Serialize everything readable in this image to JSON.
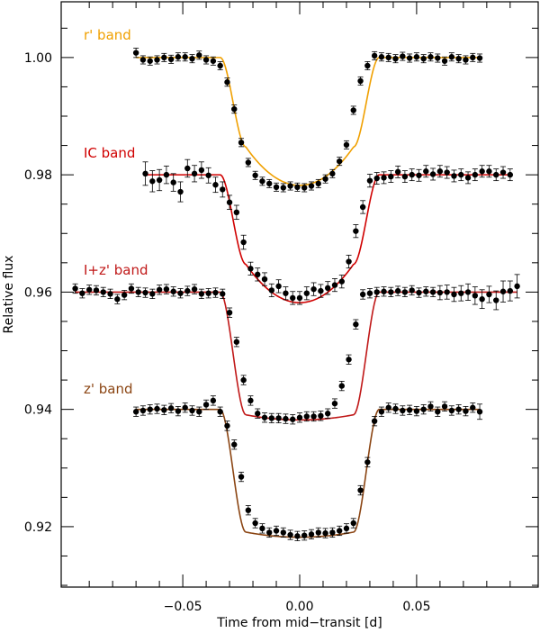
{
  "chart_data": {
    "type": "scatter",
    "xlabel": "Time from mid−transit [d]",
    "ylabel": "Relative flux",
    "xlim": [
      -0.102,
      0.102
    ],
    "ylim": [
      0.9097,
      1.0095
    ],
    "x_ticks": [
      {
        "value": -0.05,
        "label": "−0.05"
      },
      {
        "value": 0.0,
        "label": "0.00"
      },
      {
        "value": 0.05,
        "label": "0.05"
      }
    ],
    "y_ticks": [
      {
        "value": 1.0,
        "label": "1.00"
      },
      {
        "value": 0.98,
        "label": "0.98"
      },
      {
        "value": 0.96,
        "label": "0.96"
      },
      {
        "value": 0.94,
        "label": "0.94"
      },
      {
        "value": 0.92,
        "label": "0.92"
      }
    ],
    "grid": false,
    "legend": "none",
    "transit": {
      "ingress_start": 0.034,
      "ingress_end": 0.023
    },
    "series": [
      {
        "name": "r' band",
        "color": "#F0A000",
        "baseline": 1.0,
        "depth": 0.0218,
        "shape": "curved",
        "x": [
          -0.07,
          -0.067,
          -0.064,
          -0.061,
          -0.058,
          -0.055,
          -0.052,
          -0.049,
          -0.046,
          -0.043,
          -0.04,
          -0.037,
          -0.034,
          -0.031,
          -0.028,
          -0.025,
          -0.022,
          -0.019,
          -0.016,
          -0.013,
          -0.01,
          -0.007,
          -0.004,
          -0.001,
          0.002,
          0.005,
          0.008,
          0.011,
          0.014,
          0.017,
          0.02,
          0.023,
          0.026,
          0.029,
          0.032,
          0.035,
          0.038,
          0.041,
          0.044,
          0.047,
          0.05,
          0.053,
          0.056,
          0.059,
          0.062,
          0.065,
          0.068,
          0.071,
          0.074,
          0.077
        ],
        "y": [
          1.0008,
          0.9996,
          0.9994,
          0.9996,
          1.0,
          0.9997,
          1.0001,
          1.0001,
          0.9998,
          1.0004,
          0.9996,
          0.9994,
          0.9986,
          0.9958,
          0.9912,
          0.9855,
          0.9821,
          0.9799,
          0.9789,
          0.9785,
          0.9779,
          0.9778,
          0.9781,
          0.9779,
          0.9778,
          0.9781,
          0.9785,
          0.9793,
          0.9802,
          0.9823,
          0.9851,
          0.991,
          0.996,
          0.9986,
          1.0003,
          1.0001,
          1.0,
          0.9998,
          1.0002,
          0.9999,
          1.0001,
          0.9998,
          1.0001,
          0.9999,
          0.9994,
          1.0001,
          0.9998,
          0.9996,
          1.0,
          0.9999
        ],
        "err": [
          0.0008,
          0.0007,
          0.0007,
          0.0007,
          0.0007,
          0.0007,
          0.0007,
          0.0007,
          0.0007,
          0.0007,
          0.0007,
          0.0007,
          0.0007,
          0.0007,
          0.0007,
          0.0007,
          0.0007,
          0.0007,
          0.0007,
          0.0007,
          0.0007,
          0.0007,
          0.0007,
          0.0007,
          0.0007,
          0.0007,
          0.0007,
          0.0007,
          0.0007,
          0.0007,
          0.0007,
          0.0007,
          0.0007,
          0.0007,
          0.0007,
          0.0007,
          0.0007,
          0.0007,
          0.0007,
          0.0007,
          0.0007,
          0.0007,
          0.0007,
          0.0007,
          0.0007,
          0.0007,
          0.0007,
          0.0007,
          0.0007,
          0.0007
        ]
      },
      {
        "name": "IC band",
        "color": "#D00000",
        "baseline": 0.98,
        "depth": 0.0218,
        "shape": "curved",
        "x": [
          -0.066,
          -0.063,
          -0.06,
          -0.057,
          -0.054,
          -0.051,
          -0.048,
          -0.045,
          -0.042,
          -0.039,
          -0.036,
          -0.033,
          -0.03,
          -0.027,
          -0.024,
          -0.021,
          -0.018,
          -0.015,
          -0.012,
          -0.009,
          -0.006,
          -0.003,
          0.0,
          0.003,
          0.006,
          0.009,
          0.012,
          0.015,
          0.018,
          0.021,
          0.024,
          0.027,
          0.03,
          0.033,
          0.036,
          0.039,
          0.042,
          0.045,
          0.048,
          0.051,
          0.054,
          0.057,
          0.06,
          0.063,
          0.066,
          0.069,
          0.072,
          0.075,
          0.078,
          0.081,
          0.084,
          0.087,
          0.09
        ],
        "y": [
          0.9802,
          0.9789,
          0.9791,
          0.98,
          0.9787,
          0.9771,
          0.9811,
          0.9802,
          0.9808,
          0.9799,
          0.9783,
          0.9775,
          0.9753,
          0.9736,
          0.9685,
          0.964,
          0.963,
          0.9622,
          0.9603,
          0.961,
          0.9598,
          0.959,
          0.959,
          0.9598,
          0.9605,
          0.9602,
          0.9607,
          0.9612,
          0.9618,
          0.9652,
          0.9704,
          0.9745,
          0.979,
          0.9794,
          0.9795,
          0.9797,
          0.9805,
          0.9797,
          0.98,
          0.9799,
          0.9806,
          0.9801,
          0.9806,
          0.9804,
          0.9798,
          0.98,
          0.9795,
          0.98,
          0.9806,
          0.9806,
          0.98,
          0.9804,
          0.98
        ],
        "err": [
          0.002,
          0.0018,
          0.0018,
          0.0015,
          0.0015,
          0.0017,
          0.0015,
          0.0014,
          0.0014,
          0.0013,
          0.0013,
          0.0013,
          0.0012,
          0.0012,
          0.0012,
          0.0011,
          0.0011,
          0.0011,
          0.0011,
          0.0011,
          0.0011,
          0.0011,
          0.0011,
          0.0011,
          0.0011,
          0.0011,
          0.0011,
          0.0011,
          0.0011,
          0.0011,
          0.0011,
          0.0011,
          0.0011,
          0.001,
          0.001,
          0.001,
          0.001,
          0.001,
          0.001,
          0.001,
          0.001,
          0.001,
          0.001,
          0.001,
          0.001,
          0.001,
          0.001,
          0.001,
          0.001,
          0.001,
          0.001,
          0.001,
          0.001
        ]
      },
      {
        "name": "I+z' band",
        "color": "#C01818",
        "baseline": 0.96,
        "depth": 0.0218,
        "shape": "flat",
        "x": [
          -0.096,
          -0.093,
          -0.09,
          -0.087,
          -0.084,
          -0.081,
          -0.078,
          -0.075,
          -0.072,
          -0.069,
          -0.066,
          -0.063,
          -0.06,
          -0.057,
          -0.054,
          -0.051,
          -0.048,
          -0.045,
          -0.042,
          -0.039,
          -0.036,
          -0.033,
          -0.03,
          -0.027,
          -0.024,
          -0.021,
          -0.018,
          -0.015,
          -0.012,
          -0.009,
          -0.006,
          -0.003,
          0.0,
          0.003,
          0.006,
          0.009,
          0.012,
          0.015,
          0.018,
          0.021,
          0.024,
          0.027,
          0.03,
          0.033,
          0.036,
          0.039,
          0.042,
          0.045,
          0.048,
          0.051,
          0.054,
          0.057,
          0.06,
          0.063,
          0.066,
          0.069,
          0.072,
          0.075,
          0.078,
          0.081,
          0.084,
          0.087,
          0.09,
          0.093
        ],
        "y": [
          0.9606,
          0.9598,
          0.9604,
          0.9603,
          0.96,
          0.9597,
          0.9588,
          0.9595,
          0.9606,
          0.96,
          0.9599,
          0.9597,
          0.9604,
          0.9605,
          0.9601,
          0.9598,
          0.9602,
          0.9605,
          0.9597,
          0.9598,
          0.9599,
          0.9597,
          0.9565,
          0.9515,
          0.945,
          0.9415,
          0.9393,
          0.9386,
          0.9385,
          0.9385,
          0.9384,
          0.9383,
          0.9386,
          0.9388,
          0.9388,
          0.9389,
          0.9393,
          0.941,
          0.944,
          0.9485,
          0.9545,
          0.9596,
          0.9598,
          0.96,
          0.9601,
          0.96,
          0.9602,
          0.96,
          0.9603,
          0.9599,
          0.9601,
          0.96,
          0.9599,
          0.96,
          0.9596,
          0.9598,
          0.96,
          0.9594,
          0.9588,
          0.9596,
          0.9586,
          0.9601,
          0.9602,
          0.961
        ],
        "err": [
          0.0008,
          0.0008,
          0.0008,
          0.0008,
          0.0008,
          0.0008,
          0.0008,
          0.0008,
          0.0008,
          0.0008,
          0.0008,
          0.0008,
          0.0008,
          0.0008,
          0.0008,
          0.0008,
          0.0008,
          0.0008,
          0.0008,
          0.0008,
          0.0008,
          0.0008,
          0.0008,
          0.0008,
          0.0008,
          0.0008,
          0.0008,
          0.0008,
          0.0008,
          0.0008,
          0.0008,
          0.0008,
          0.0008,
          0.0008,
          0.0008,
          0.0008,
          0.0008,
          0.0008,
          0.0008,
          0.0008,
          0.0008,
          0.0008,
          0.0008,
          0.0008,
          0.0008,
          0.0008,
          0.0008,
          0.0008,
          0.0008,
          0.0008,
          0.0008,
          0.0008,
          0.0012,
          0.0012,
          0.0012,
          0.0013,
          0.0014,
          0.0015,
          0.0016,
          0.0014,
          0.0016,
          0.0018,
          0.0017,
          0.002
        ]
      },
      {
        "name": "z' band",
        "color": "#8B4513",
        "baseline": 0.94,
        "depth": 0.0218,
        "shape": "flat",
        "x": [
          -0.07,
          -0.067,
          -0.064,
          -0.061,
          -0.058,
          -0.055,
          -0.052,
          -0.049,
          -0.046,
          -0.043,
          -0.04,
          -0.037,
          -0.034,
          -0.031,
          -0.028,
          -0.025,
          -0.022,
          -0.019,
          -0.016,
          -0.013,
          -0.01,
          -0.007,
          -0.004,
          -0.001,
          0.002,
          0.005,
          0.008,
          0.011,
          0.014,
          0.017,
          0.02,
          0.023,
          0.026,
          0.029,
          0.032,
          0.035,
          0.038,
          0.041,
          0.044,
          0.047,
          0.05,
          0.053,
          0.056,
          0.059,
          0.062,
          0.065,
          0.068,
          0.071,
          0.074,
          0.077
        ],
        "y": [
          0.9396,
          0.9398,
          0.94,
          0.9401,
          0.9399,
          0.9402,
          0.9397,
          0.9403,
          0.9398,
          0.9396,
          0.9408,
          0.9415,
          0.9396,
          0.9372,
          0.934,
          0.9285,
          0.9228,
          0.9206,
          0.9197,
          0.919,
          0.9193,
          0.919,
          0.9186,
          0.9184,
          0.9185,
          0.9187,
          0.919,
          0.9189,
          0.919,
          0.9193,
          0.9197,
          0.9206,
          0.9262,
          0.931,
          0.938,
          0.9396,
          0.9403,
          0.9401,
          0.9398,
          0.9399,
          0.9397,
          0.94,
          0.9405,
          0.9396,
          0.9405,
          0.9398,
          0.94,
          0.9397,
          0.9403,
          0.9396
        ],
        "err": [
          0.0008,
          0.0008,
          0.0008,
          0.0008,
          0.0008,
          0.0008,
          0.0008,
          0.0008,
          0.0008,
          0.0008,
          0.0008,
          0.0008,
          0.0008,
          0.0008,
          0.0008,
          0.0008,
          0.0008,
          0.0008,
          0.0008,
          0.0008,
          0.0008,
          0.0008,
          0.0008,
          0.0008,
          0.0008,
          0.0008,
          0.0008,
          0.0008,
          0.0008,
          0.0008,
          0.0008,
          0.0008,
          0.0008,
          0.0008,
          0.0008,
          0.0008,
          0.0008,
          0.0008,
          0.0008,
          0.0008,
          0.0008,
          0.0008,
          0.0008,
          0.0008,
          0.0008,
          0.0008,
          0.0008,
          0.0008,
          0.0008,
          0.0013
        ]
      }
    ]
  }
}
